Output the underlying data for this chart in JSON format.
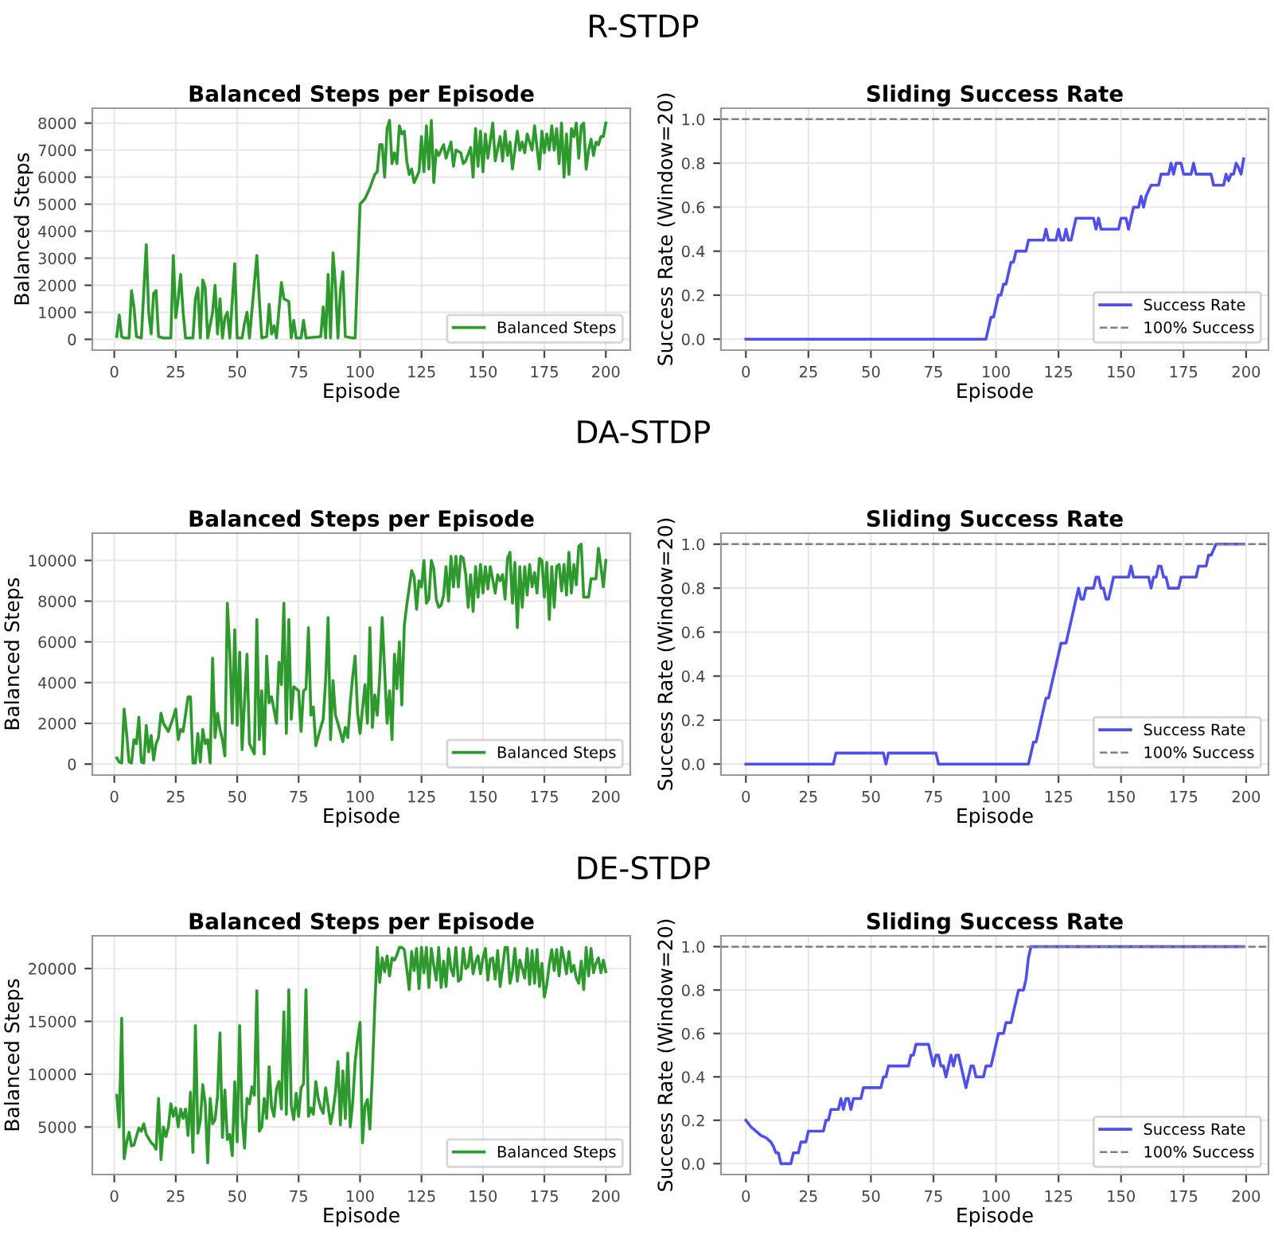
{
  "chart_data": [
    {
      "type": "line",
      "title": "Balanced Steps per Episode",
      "xlabel": "Episode",
      "ylabel": "Balanced Steps",
      "annotations": [
        "R-STDP"
      ],
      "xlim": [
        -8.95,
        209.95
      ],
      "ylim": [
        -400,
        8550
      ],
      "xticks": [
        0,
        25,
        50,
        75,
        100,
        125,
        150,
        175,
        200
      ],
      "yticks": [
        0,
        1000,
        2000,
        3000,
        4000,
        5000,
        6000,
        7000,
        8000
      ],
      "grid": true,
      "legend": "lower right",
      "line_style": "solid",
      "marker": "none",
      "series": [
        {
          "name": "Balanced Steps",
          "color": "#2e9a2e",
          "x": [
            1,
            2,
            3,
            4,
            6,
            7,
            8,
            9,
            11,
            13,
            14,
            15,
            16,
            17,
            18,
            20,
            23,
            24,
            25,
            26,
            27,
            28,
            29,
            32,
            33,
            34,
            35,
            36,
            37,
            38,
            40,
            41,
            42,
            43,
            44,
            45,
            46,
            47,
            49,
            50,
            52,
            53,
            54,
            55,
            58,
            59,
            60,
            62,
            63,
            64,
            65,
            66,
            68,
            69,
            71,
            72,
            73,
            74,
            76,
            77,
            78,
            84,
            85,
            86,
            87,
            88,
            89,
            90,
            91,
            92,
            93,
            94,
            97,
            98,
            100,
            102,
            104,
            106,
            107,
            108,
            109,
            110,
            111,
            112,
            113,
            114,
            115,
            116,
            117,
            118,
            119,
            120,
            121,
            122,
            124,
            125,
            126,
            127,
            128,
            129,
            130,
            131,
            132,
            134,
            135,
            137,
            138,
            139,
            141,
            142,
            143,
            145,
            146,
            147,
            148,
            149,
            150,
            151,
            152,
            154,
            155,
            157,
            158,
            159,
            160,
            161,
            162,
            164,
            165,
            166,
            167,
            168,
            170,
            171,
            172,
            173,
            174,
            175,
            176,
            177,
            178,
            179,
            180,
            181,
            182,
            183,
            184,
            185,
            186,
            187,
            188,
            189,
            190,
            191,
            192,
            193,
            194,
            195,
            196,
            197,
            198,
            199,
            200
          ],
          "values": [
            100,
            900,
            100,
            50,
            50,
            1800,
            1200,
            100,
            50,
            3500,
            1000,
            200,
            1700,
            1800,
            100,
            50,
            50,
            3100,
            800,
            1500,
            2400,
            1000,
            50,
            50,
            1500,
            1900,
            50,
            2200,
            1900,
            50,
            1000,
            2000,
            200,
            1500,
            50,
            800,
            1000,
            50,
            2800,
            50,
            50,
            600,
            1000,
            50,
            3100,
            1500,
            50,
            100,
            1300,
            200,
            500,
            50,
            2100,
            1500,
            1400,
            50,
            700,
            50,
            50,
            700,
            50,
            100,
            1200,
            50,
            2400,
            50,
            3200,
            2000,
            50,
            1800,
            2500,
            100,
            50,
            50,
            5000,
            5200,
            5600,
            6100,
            6200,
            7200,
            7200,
            6000,
            7800,
            8100,
            6500,
            6900,
            6500,
            7900,
            7600,
            7700,
            6600,
            6100,
            6300,
            5800,
            6200,
            7500,
            6200,
            7900,
            6300,
            8100,
            5800,
            7000,
            6800,
            7200,
            6700,
            7300,
            6400,
            7000,
            6900,
            6500,
            6600,
            7100,
            6000,
            7800,
            6400,
            7700,
            6200,
            7600,
            6700,
            8000,
            6600,
            7500,
            6600,
            7700,
            6800,
            7300,
            6300,
            7700,
            7000,
            7300,
            6900,
            7600,
            7000,
            7900,
            7100,
            6300,
            7700,
            6900,
            7600,
            7000,
            7900,
            7000,
            7800,
            6500,
            8000,
            6000,
            7600,
            6100,
            7800,
            7500,
            8000,
            6700,
            7900,
            8000,
            6300,
            7000,
            7400,
            6800,
            7300,
            7200,
            7500,
            7500,
            8000
          ]
        }
      ]
    },
    {
      "type": "line",
      "title": "Sliding Success Rate",
      "xlabel": "Episode",
      "ylabel": "Success Rate (Window=20)",
      "xlim": [
        -9.95,
        208.95
      ],
      "ylim": [
        -0.05,
        1.05
      ],
      "xticks": [
        0,
        25,
        50,
        75,
        100,
        125,
        150,
        175,
        200
      ],
      "yticks": [
        {
          "value": 0,
          "label": "0.0"
        },
        {
          "value": 0.2,
          "label": "0.2"
        },
        {
          "value": 0.4,
          "label": "0.4"
        },
        {
          "value": 0.6,
          "label": "0.6"
        },
        {
          "value": 0.8,
          "label": "0.8"
        },
        {
          "value": 1,
          "label": "1.0"
        }
      ],
      "grid": true,
      "legend": "lower right",
      "line_style": "solid",
      "marker": "none",
      "ref_lines": [
        {
          "axis": "y",
          "value": 1.0,
          "label": "100% Success",
          "color": "#808080",
          "line_style": "dashed"
        }
      ],
      "series": [
        {
          "name": "Success Rate",
          "color": "#5050e8",
          "x": [
            0,
            96,
            97,
            98,
            99,
            100,
            101,
            102,
            103,
            104,
            105,
            106,
            107,
            108,
            112,
            113,
            119,
            120,
            121,
            124,
            125,
            126,
            127,
            128,
            129,
            130,
            131,
            132,
            139,
            140,
            141,
            142,
            149,
            150,
            152,
            153,
            154,
            155,
            157,
            158,
            159,
            160,
            162,
            165,
            166,
            169,
            170,
            171,
            172,
            174,
            175,
            178,
            179,
            180,
            186,
            187,
            191,
            192,
            193,
            194,
            195,
            196,
            197,
            198,
            199
          ],
          "values": [
            0,
            0,
            0.05,
            0.1,
            0.1,
            0.15,
            0.2,
            0.2,
            0.25,
            0.25,
            0.3,
            0.35,
            0.35,
            0.4,
            0.4,
            0.45,
            0.45,
            0.5,
            0.45,
            0.45,
            0.5,
            0.45,
            0.45,
            0.5,
            0.45,
            0.45,
            0.5,
            0.55,
            0.55,
            0.5,
            0.55,
            0.5,
            0.5,
            0.55,
            0.55,
            0.5,
            0.55,
            0.6,
            0.6,
            0.65,
            0.6,
            0.65,
            0.7,
            0.7,
            0.75,
            0.75,
            0.8,
            0.75,
            0.8,
            0.8,
            0.75,
            0.75,
            0.8,
            0.75,
            0.75,
            0.7,
            0.7,
            0.75,
            0.72,
            0.75,
            0.75,
            0.8,
            0.78,
            0.75,
            0.82
          ]
        }
      ]
    },
    {
      "type": "line",
      "title": "Balanced Steps per Episode",
      "xlabel": "Episode",
      "ylabel": "Balanced Steps",
      "annotations": [
        "DA-STDP"
      ],
      "xlim": [
        -8.95,
        209.95
      ],
      "ylim": [
        -540,
        11340
      ],
      "xticks": [
        0,
        25,
        50,
        75,
        100,
        125,
        150,
        175,
        200
      ],
      "yticks": [
        0,
        2000,
        4000,
        6000,
        8000,
        10000
      ],
      "grid": true,
      "legend": "lower right",
      "line_style": "solid",
      "marker": "none",
      "series": [
        {
          "name": "Balanced Steps",
          "color": "#2e9a2e",
          "x": [
            1,
            2,
            3,
            4,
            5,
            6,
            7,
            8,
            9,
            10,
            11,
            12,
            13,
            14,
            15,
            16,
            17,
            18,
            19,
            20,
            22,
            24,
            25,
            26,
            27,
            28,
            30,
            31,
            32,
            33,
            34,
            35,
            36,
            37,
            38,
            39,
            40,
            41,
            42,
            43,
            44,
            45,
            46,
            47,
            48,
            49,
            50,
            51,
            52,
            53,
            54,
            55,
            57,
            58,
            59,
            60,
            61,
            62,
            63,
            64,
            66,
            67,
            68,
            69,
            70,
            71,
            72,
            73,
            75,
            76,
            77,
            78,
            79,
            80,
            81,
            82,
            84,
            85,
            86,
            87,
            88,
            89,
            90,
            91,
            93,
            94,
            95,
            96,
            97,
            98,
            99,
            100,
            102,
            103,
            104,
            105,
            106,
            107,
            108,
            109,
            111,
            112,
            113,
            114,
            115,
            116,
            117,
            118,
            119,
            121,
            122,
            123,
            124,
            125,
            126,
            127,
            128,
            129,
            130,
            131,
            132,
            133,
            134,
            135,
            136,
            137,
            138,
            139,
            140,
            141,
            142,
            143,
            144,
            145,
            146,
            147,
            148,
            149,
            150,
            151,
            152,
            153,
            155,
            156,
            157,
            158,
            159,
            160,
            161,
            162,
            163,
            164,
            165,
            166,
            167,
            168,
            169,
            170,
            171,
            172,
            173,
            174,
            175,
            176,
            177,
            178,
            179,
            180,
            181,
            182,
            183,
            184,
            185,
            186,
            187,
            188,
            189,
            190,
            191,
            192,
            193,
            194,
            195,
            196,
            197,
            198,
            199,
            200
          ],
          "values": [
            300,
            100,
            50,
            2700,
            1500,
            100,
            50,
            1200,
            1000,
            2300,
            100,
            50,
            1900,
            600,
            1400,
            200,
            1000,
            1300,
            2500,
            2000,
            1600,
            2300,
            2700,
            1200,
            1700,
            1600,
            3300,
            3300,
            50,
            50,
            1500,
            100,
            1700,
            1000,
            1200,
            50,
            5200,
            1300,
            2500,
            1700,
            1200,
            400,
            7900,
            5500,
            2000,
            6600,
            1900,
            5500,
            700,
            3100,
            5400,
            1000,
            500,
            7100,
            1200,
            3600,
            500,
            5300,
            3000,
            3300,
            2000,
            5000,
            3900,
            7900,
            1500,
            7100,
            2200,
            3800,
            3600,
            1600,
            3600,
            3700,
            6700,
            2400,
            2800,
            900,
            1800,
            2200,
            4100,
            7200,
            1200,
            4100,
            2400,
            2000,
            1100,
            1800,
            1300,
            3000,
            4300,
            5300,
            2500,
            1500,
            3900,
            2000,
            6700,
            1800,
            3400,
            2400,
            4300,
            7200,
            2000,
            3600,
            1200,
            5400,
            3700,
            6000,
            2900,
            6800,
            7800,
            9500,
            9200,
            7600,
            9000,
            8700,
            10000,
            7900,
            8100,
            10000,
            9600,
            8100,
            7700,
            7800,
            8300,
            9700,
            8000,
            10200,
            8700,
            10200,
            8700,
            10200,
            10100,
            9300,
            7700,
            9300,
            7500,
            9700,
            8200,
            9800,
            8400,
            9700,
            8600,
            9700,
            8400,
            9300,
            9000,
            9300,
            8100,
            10100,
            10400,
            7900,
            9900,
            6700,
            9700,
            7700,
            9700,
            8300,
            9800,
            8700,
            9400,
            8400,
            10100,
            10000,
            8200,
            9900,
            7100,
            9700,
            7700,
            9700,
            9800,
            8500,
            9800,
            8300,
            10400,
            8400,
            9800,
            8800,
            10700,
            10800,
            8200,
            8200,
            8200,
            9100,
            9100,
            9100,
            10600,
            9700,
            8700,
            10000
          ]
        }
      ]
    },
    {
      "type": "line",
      "title": "Sliding Success Rate",
      "xlabel": "Episode",
      "ylabel": "Success Rate (Window=20)",
      "xlim": [
        -9.95,
        208.95
      ],
      "ylim": [
        -0.05,
        1.05
      ],
      "xticks": [
        0,
        25,
        50,
        75,
        100,
        125,
        150,
        175,
        200
      ],
      "yticks": [
        {
          "value": 0,
          "label": "0.0"
        },
        {
          "value": 0.2,
          "label": "0.2"
        },
        {
          "value": 0.4,
          "label": "0.4"
        },
        {
          "value": 0.6,
          "label": "0.6"
        },
        {
          "value": 0.8,
          "label": "0.8"
        },
        {
          "value": 1,
          "label": "1.0"
        }
      ],
      "grid": true,
      "legend": "lower right",
      "line_style": "solid",
      "marker": "none",
      "ref_lines": [
        {
          "axis": "y",
          "value": 1.0,
          "label": "100% Success",
          "color": "#808080",
          "line_style": "dashed"
        }
      ],
      "series": [
        {
          "name": "Success Rate",
          "color": "#5050e8",
          "x": [
            0,
            35,
            36,
            55,
            56,
            57,
            76,
            77,
            113,
            115,
            116,
            117,
            119,
            120,
            121,
            123,
            125,
            126,
            128,
            130,
            132,
            133,
            134,
            135,
            136,
            139,
            140,
            141,
            142,
            143,
            144,
            145,
            146,
            147,
            153,
            154,
            155,
            161,
            162,
            163,
            164,
            165,
            166,
            167,
            168,
            169,
            173,
            174,
            180,
            181,
            184,
            185,
            186,
            188,
            199
          ],
          "values": [
            0,
            0,
            0.05,
            0.05,
            0,
            0.05,
            0.05,
            0,
            0,
            0.1,
            0.1,
            0.15,
            0.25,
            0.3,
            0.3,
            0.4,
            0.5,
            0.55,
            0.55,
            0.65,
            0.75,
            0.8,
            0.75,
            0.75,
            0.8,
            0.8,
            0.85,
            0.85,
            0.8,
            0.8,
            0.75,
            0.75,
            0.8,
            0.85,
            0.85,
            0.9,
            0.85,
            0.85,
            0.8,
            0.85,
            0.85,
            0.9,
            0.9,
            0.85,
            0.85,
            0.8,
            0.8,
            0.85,
            0.85,
            0.9,
            0.9,
            0.95,
            0.95,
            1.0,
            1.0
          ]
        }
      ]
    },
    {
      "type": "line",
      "title": "Balanced Steps per Episode",
      "xlabel": "Episode",
      "ylabel": "Balanced Steps",
      "annotations": [
        "DE-STDP"
      ],
      "xlim": [
        -8.95,
        209.95
      ],
      "ylim": [
        500,
        23100
      ],
      "xticks": [
        0,
        25,
        50,
        75,
        100,
        125,
        150,
        175,
        200
      ],
      "yticks": [
        5000,
        10000,
        15000,
        20000
      ],
      "grid": true,
      "legend": "lower right",
      "line_style": "solid",
      "marker": "none",
      "series": [
        {
          "name": "Balanced Steps",
          "color": "#2e9a2e",
          "x": [
            1,
            2,
            3,
            4,
            5,
            6,
            7,
            8,
            10,
            11,
            12,
            13,
            14,
            15,
            16,
            17,
            18,
            19,
            20,
            21,
            22,
            23,
            24,
            25,
            26,
            27,
            28,
            29,
            30,
            31,
            32,
            33,
            34,
            35,
            36,
            37,
            38,
            39,
            40,
            41,
            42,
            43,
            44,
            45,
            46,
            47,
            48,
            49,
            50,
            51,
            52,
            53,
            54,
            55,
            56,
            57,
            58,
            59,
            60,
            61,
            62,
            63,
            64,
            65,
            66,
            67,
            68,
            69,
            70,
            71,
            72,
            73,
            74,
            75,
            76,
            77,
            78,
            79,
            80,
            81,
            82,
            83,
            84,
            85,
            86,
            87,
            88,
            89,
            90,
            91,
            92,
            93,
            94,
            95,
            96,
            97,
            98,
            99,
            100,
            101,
            102,
            103,
            104,
            105,
            106,
            107,
            108,
            109,
            110,
            111,
            112,
            113,
            114,
            115,
            116,
            117,
            118,
            119,
            120,
            121,
            122,
            123,
            124,
            125,
            126,
            127,
            128,
            129,
            130,
            131,
            132,
            133,
            134,
            135,
            136,
            137,
            138,
            139,
            140,
            141,
            142,
            143,
            144,
            145,
            146,
            147,
            148,
            149,
            150,
            151,
            152,
            153,
            154,
            155,
            156,
            157,
            158,
            159,
            160,
            161,
            162,
            163,
            164,
            165,
            166,
            167,
            168,
            169,
            170,
            171,
            172,
            173,
            174,
            175,
            176,
            177,
            178,
            179,
            180,
            181,
            182,
            183,
            184,
            185,
            186,
            187,
            188,
            189,
            190,
            191,
            192,
            193,
            194,
            195,
            196,
            197,
            198,
            199,
            200
          ],
          "values": [
            8000,
            5000,
            15300,
            2000,
            3500,
            4500,
            3200,
            3300,
            4900,
            4600,
            5300,
            4300,
            3900,
            3500,
            3300,
            2900,
            7700,
            1900,
            5000,
            4100,
            5000,
            7200,
            6000,
            6800,
            5000,
            6700,
            5800,
            6700,
            4200,
            8300,
            2600,
            14600,
            4400,
            5600,
            9000,
            7200,
            1600,
            7700,
            5300,
            5700,
            7900,
            13900,
            4000,
            8500,
            3800,
            4300,
            2300,
            9300,
            3600,
            14600,
            6000,
            3000,
            7700,
            7200,
            8800,
            8000,
            17900,
            4600,
            5000,
            7700,
            5800,
            10700,
            6900,
            6000,
            8600,
            9300,
            6700,
            15900,
            6200,
            18000,
            7000,
            5700,
            8200,
            6000,
            8700,
            9100,
            18000,
            6000,
            6800,
            6200,
            9300,
            7700,
            6800,
            6300,
            8700,
            7000,
            5300,
            6500,
            8300,
            11200,
            5200,
            10300,
            5800,
            12000,
            5000,
            7300,
            11200,
            13300,
            14900,
            3500,
            7000,
            7600,
            4800,
            10000,
            16500,
            22000,
            18700,
            21000,
            19700,
            21200,
            19300,
            21000,
            20800,
            21300,
            22000,
            22000,
            21800,
            20000,
            18000,
            21600,
            19800,
            21900,
            18100,
            22000,
            19600,
            22000,
            18200,
            21900,
            20300,
            18900,
            22000,
            18200,
            20700,
            18300,
            21900,
            20000,
            19300,
            22000,
            18800,
            19000,
            21900,
            20000,
            20200,
            22000,
            19500,
            20600,
            21200,
            19500,
            21000,
            21900,
            18900,
            20900,
            21000,
            19000,
            21700,
            18300,
            20100,
            22000,
            22000,
            18600,
            19700,
            21900,
            18800,
            20800,
            20000,
            19100,
            21900,
            18500,
            21700,
            18600,
            21800,
            18300,
            20500,
            17300,
            18500,
            20400,
            21800,
            19800,
            21800,
            19300,
            22000,
            20900,
            19500,
            21600,
            19700,
            20300,
            19100,
            18600,
            20700,
            18000,
            22000,
            19300,
            21900,
            19600,
            20500,
            21000,
            19600,
            20800,
            19700
          ]
        }
      ]
    },
    {
      "type": "line",
      "title": "Sliding Success Rate",
      "xlabel": "Episode",
      "ylabel": "Success Rate (Window=20)",
      "xlim": [
        -9.95,
        208.95
      ],
      "ylim": [
        -0.05,
        1.05
      ],
      "xticks": [
        0,
        25,
        50,
        75,
        100,
        125,
        150,
        175,
        200
      ],
      "yticks": [
        {
          "value": 0,
          "label": "0.0"
        },
        {
          "value": 0.2,
          "label": "0.2"
        },
        {
          "value": 0.4,
          "label": "0.4"
        },
        {
          "value": 0.6,
          "label": "0.6"
        },
        {
          "value": 0.8,
          "label": "0.8"
        },
        {
          "value": 1,
          "label": "1.0"
        }
      ],
      "grid": true,
      "legend": "lower right",
      "line_style": "solid",
      "marker": "none",
      "ref_lines": [
        {
          "axis": "y",
          "value": 1.0,
          "label": "100% Success",
          "color": "#808080",
          "line_style": "dashed"
        }
      ],
      "series": [
        {
          "name": "Success Rate",
          "color": "#5050e8",
          "x": [
            0,
            2,
            4,
            6,
            8,
            10,
            11,
            12,
            13,
            14,
            17,
            18,
            19,
            21,
            22,
            24,
            25,
            31,
            32,
            33,
            34,
            37,
            38,
            39,
            40,
            41,
            42,
            43,
            46,
            47,
            54,
            55,
            56,
            57,
            65,
            66,
            67,
            68,
            73,
            74,
            75,
            76,
            77,
            78,
            79,
            80,
            81,
            82,
            83,
            84,
            85,
            86,
            87,
            88,
            89,
            90,
            91,
            92,
            95,
            96,
            98,
            99,
            100,
            101,
            103,
            104,
            106,
            107,
            108,
            109,
            111,
            112,
            113,
            114,
            199
          ],
          "values": [
            0.2,
            0.17,
            0.15,
            0.13,
            0.12,
            0.1,
            0.08,
            0.05,
            0.05,
            0,
            0,
            0,
            0.05,
            0.05,
            0.1,
            0.1,
            0.15,
            0.15,
            0.2,
            0.2,
            0.25,
            0.25,
            0.3,
            0.25,
            0.3,
            0.3,
            0.25,
            0.3,
            0.3,
            0.35,
            0.35,
            0.4,
            0.4,
            0.45,
            0.45,
            0.5,
            0.5,
            0.55,
            0.55,
            0.5,
            0.45,
            0.5,
            0.5,
            0.45,
            0.45,
            0.4,
            0.45,
            0.5,
            0.45,
            0.5,
            0.5,
            0.45,
            0.4,
            0.35,
            0.4,
            0.45,
            0.45,
            0.4,
            0.4,
            0.45,
            0.45,
            0.5,
            0.55,
            0.6,
            0.6,
            0.65,
            0.65,
            0.7,
            0.75,
            0.8,
            0.8,
            0.85,
            0.95,
            1.0,
            1.0
          ]
        }
      ]
    }
  ]
}
